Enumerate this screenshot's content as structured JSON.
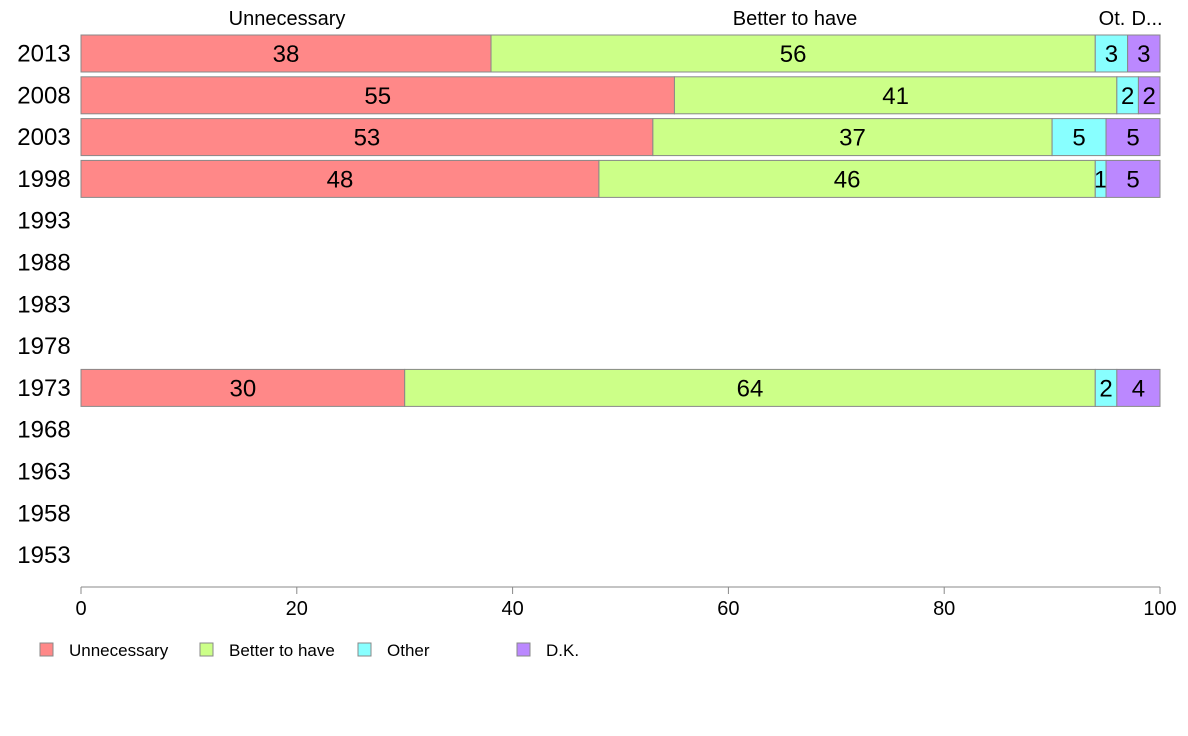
{
  "chart_data": {
    "type": "bar",
    "orientation": "horizontal",
    "stacked": true,
    "categories": [
      "2013",
      "2008",
      "2003",
      "1998",
      "1993",
      "1988",
      "1983",
      "1978",
      "1973",
      "1968",
      "1963",
      "1958",
      "1953"
    ],
    "series": [
      {
        "name": "Unnecessary",
        "color": "#ff8888",
        "values": [
          38,
          55,
          53,
          48,
          null,
          null,
          null,
          null,
          30,
          null,
          null,
          null,
          null
        ]
      },
      {
        "name": "Better to have",
        "color": "#ccff88",
        "values": [
          56,
          41,
          37,
          46,
          null,
          null,
          null,
          null,
          64,
          null,
          null,
          null,
          null
        ]
      },
      {
        "name": "Other",
        "color": "#88ffff",
        "values": [
          3,
          2,
          5,
          1,
          null,
          null,
          null,
          null,
          2,
          null,
          null,
          null,
          null
        ]
      },
      {
        "name": "D.K.",
        "color": "#bb88ff",
        "values": [
          3,
          2,
          5,
          5,
          null,
          null,
          null,
          null,
          4,
          null,
          null,
          null,
          null
        ]
      }
    ],
    "column_headers": [
      "Unnecessary",
      "Better to have",
      "Ot.",
      "D..."
    ],
    "xlim": [
      0,
      100
    ],
    "xticks": [
      0,
      20,
      40,
      60,
      80,
      100
    ],
    "grid": false,
    "legend_position": "bottom"
  }
}
